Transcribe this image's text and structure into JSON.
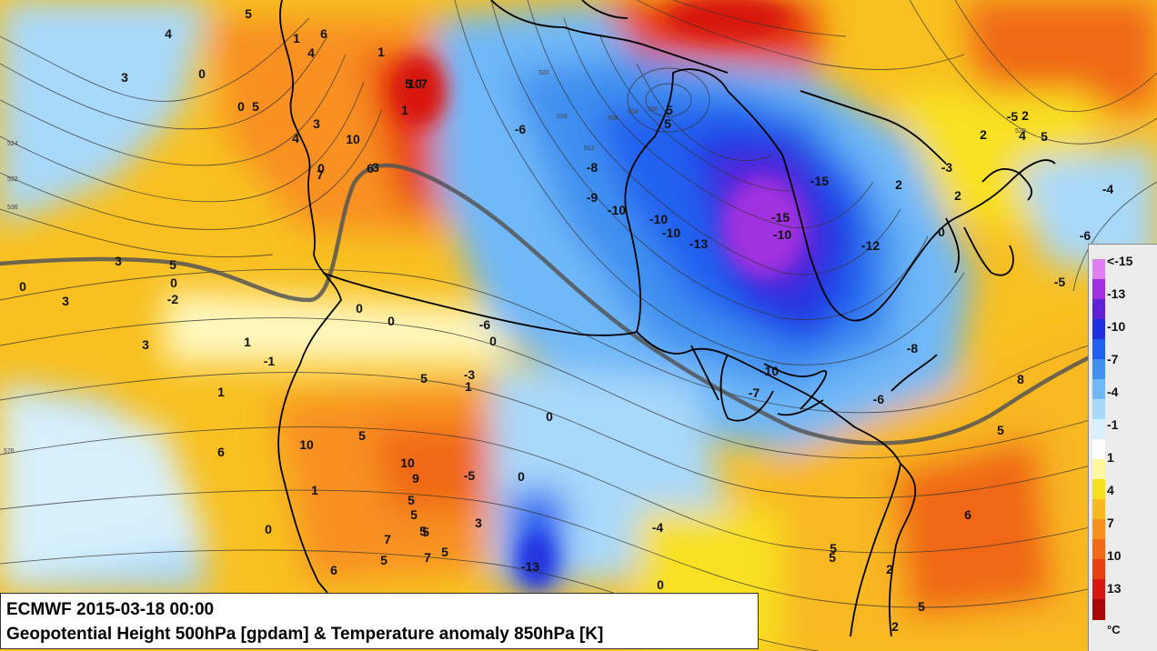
{
  "caption": {
    "line1": "ECMWF 2015-03-18 00:00",
    "line2": "Geopotential Height 500hPa [gpdam] & Temperature anomaly 850hPa [K]"
  },
  "legend": {
    "ticks": [
      "<-15",
      "-13",
      "-10",
      "-7",
      "-4",
      "-1",
      "1",
      "4",
      "7",
      "10",
      "13"
    ],
    "unit": "°C",
    "colors": [
      "#e080f0",
      "#a030e0",
      "#6020d8",
      "#2030e0",
      "#2060f0",
      "#4090f0",
      "#70b8f8",
      "#a8d8fa",
      "#d8f0fc",
      "#ffffff",
      "#fff8a0",
      "#f8e020",
      "#f8b820",
      "#f89020",
      "#f06818",
      "#e84010",
      "#d81810",
      "#a80808"
    ]
  },
  "map_labels": {
    "anomaly": [
      "4",
      "0",
      "3",
      "0",
      "5",
      "5",
      "1",
      "6",
      "4",
      "1",
      "5",
      "7",
      "1",
      "10",
      "3",
      "10",
      "4",
      "0",
      "7",
      "6",
      "3",
      "3",
      "0",
      "3",
      "5",
      "0",
      "-2",
      "1",
      "-1",
      "0",
      "3",
      "0",
      "-6",
      "0",
      "1",
      "5",
      "-3",
      "0",
      "-4",
      "0",
      "6",
      "7",
      "5",
      "10",
      "10",
      "9",
      "-5",
      "0",
      "5",
      "1",
      "5",
      "5",
      "3",
      "5",
      "1",
      "6",
      "5",
      "7",
      "5",
      "-13",
      "0",
      "6",
      "5",
      "8",
      "5",
      "5",
      "2",
      "2",
      "5",
      "2",
      "5",
      "-5",
      "-6",
      "-8",
      "-9",
      "-10",
      "-10",
      "-10",
      "-13",
      "-15",
      "-15",
      "-10",
      "-12",
      "-10",
      "-7",
      "-8",
      "-6",
      "-4",
      "-6",
      "-5",
      "-3",
      "2",
      "2",
      "0",
      "2",
      "4",
      "5",
      "5",
      "0",
      "1"
    ],
    "heights": [
      "524",
      "532",
      "536",
      "520",
      "516",
      "512",
      "508",
      "504",
      "500",
      "520",
      "576"
    ]
  }
}
